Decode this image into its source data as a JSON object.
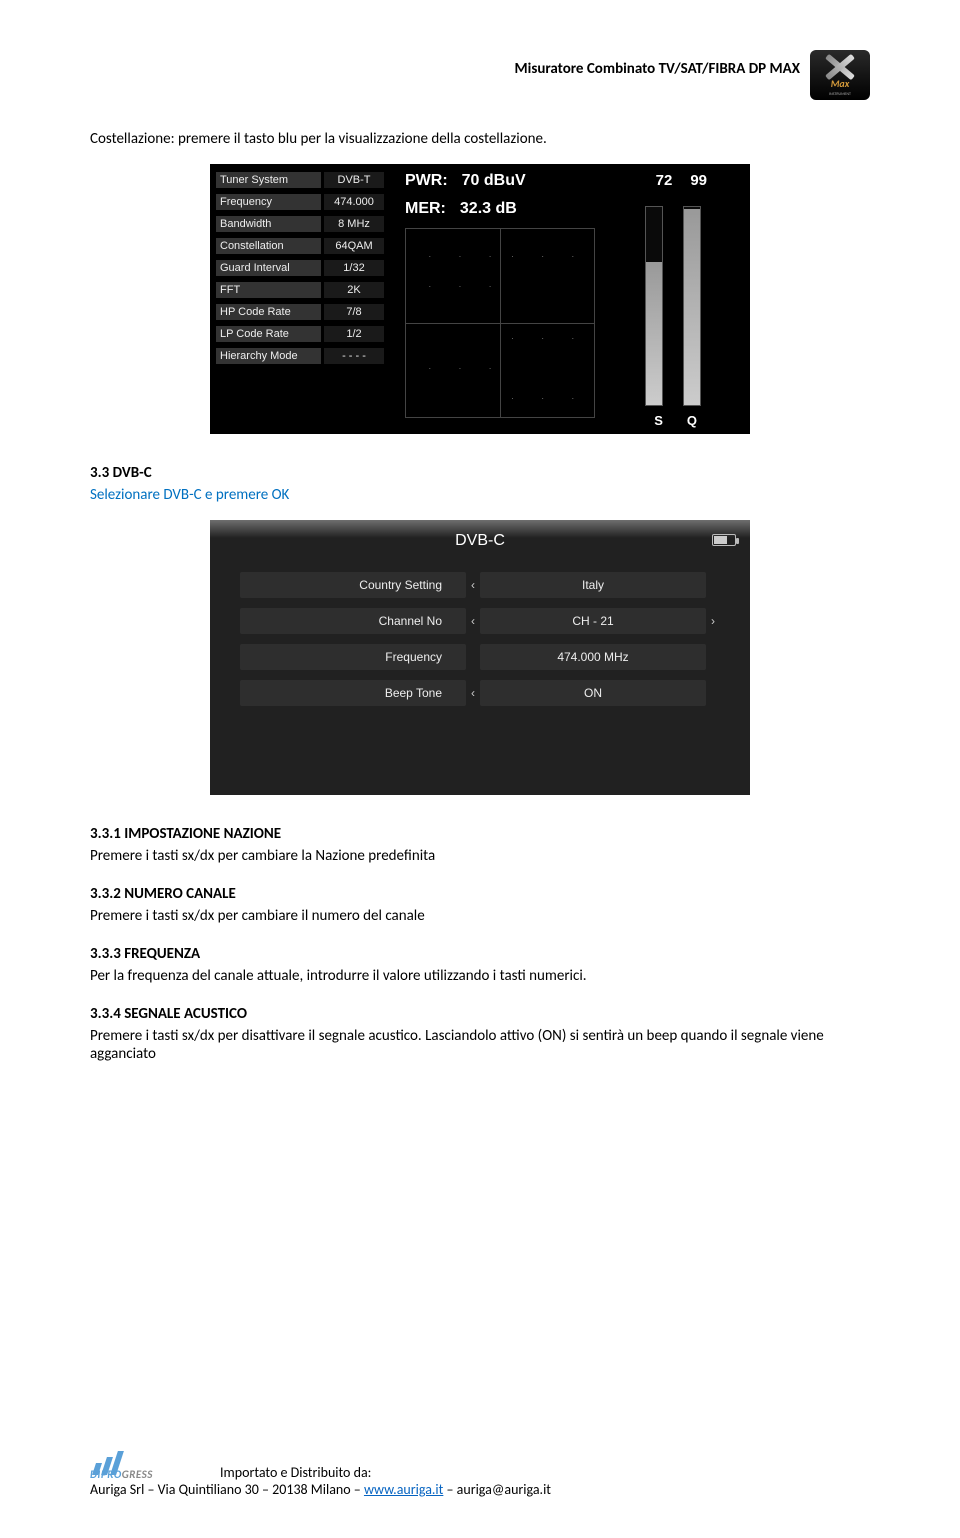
{
  "header": {
    "title": "Misuratore Combinato TV/SAT/FIBRA DP MAX",
    "logo_text": "Max",
    "logo_sub": "INSTRUMENT"
  },
  "intro": {
    "text": "Costellazione: premere il tasto blu per la visualizzazione della costellazione."
  },
  "screen1": {
    "params": [
      {
        "label": "Tuner System",
        "value": "DVB-T"
      },
      {
        "label": "Frequency",
        "value": "474.000"
      },
      {
        "label": "Bandwidth",
        "value": "8 MHz"
      },
      {
        "label": "Constellation",
        "value": "64QAM"
      },
      {
        "label": "Guard Interval",
        "value": "1/32"
      },
      {
        "label": "FFT",
        "value": "2K"
      },
      {
        "label": "HP Code Rate",
        "value": "7/8"
      },
      {
        "label": "LP Code Rate",
        "value": "1/2"
      },
      {
        "label": "Hierarchy Mode",
        "value": "- - - -"
      }
    ],
    "pwr_label": "PWR:",
    "pwr_value": "70 dBuV",
    "mer_label": "MER:",
    "mer_value": "32.3 dB",
    "bar1_value": "72",
    "bar2_value": "99",
    "bar1_label": "S",
    "bar2_label": "Q",
    "bar1_fill_pct": 72,
    "bar2_fill_pct": 99,
    "colors": {
      "bg": "#000000",
      "cell_bg": "#333333",
      "text": "#e8e8e8"
    }
  },
  "section_3_3": {
    "title": "3.3 DVB-C",
    "subtitle": "Selezionare DVB-C e premere OK"
  },
  "screen2": {
    "title": "DVB-C",
    "rows": [
      {
        "label": "Country Setting",
        "value": "Italy",
        "left": "‹",
        "right": ""
      },
      {
        "label": "Channel No",
        "value": "CH - 21",
        "left": "‹",
        "right": "›"
      },
      {
        "label": "Frequency",
        "value": "474.000 MHz",
        "left": "",
        "right": ""
      },
      {
        "label": "Beep Tone",
        "value": "ON",
        "left": "‹",
        "right": ""
      }
    ],
    "battery_pct": 60,
    "colors": {
      "bg": "#212121",
      "cell": "#2e2e2e",
      "text": "#eeeeee"
    }
  },
  "section_3_3_1": {
    "title": "3.3.1 IMPOSTAZIONE NAZIONE",
    "text": "Premere i tasti sx/dx  per cambiare la Nazione predefinita"
  },
  "section_3_3_2": {
    "title": "3.3.2 NUMERO CANALE",
    "text": "Premere i tasti sx/dx per cambiare il numero del canale"
  },
  "section_3_3_3": {
    "title": "3.3.3 FREQUENZA",
    "text": "Per la frequenza del canale attuale, introdurre il valore utilizzando i tasti numerici."
  },
  "section_3_3_4": {
    "title": "3.3.4 SEGNALE ACUSTICO",
    "text": "Premere i tasti sx/dx  per disattivare il segnale acustico. Lasciandolo attivo (ON) si sentirà un beep quando il segnale viene agganciato"
  },
  "footer": {
    "brand_a": "DIPRO",
    "brand_b": "GRESS",
    "line1": "Importato e Distribuito da:",
    "company": "Auriga Srl – Via Quintiliano 30 – 20138 Milano – ",
    "url": "www.auriga.it",
    "sep": " – ",
    "email": "auriga@auriga.it"
  }
}
